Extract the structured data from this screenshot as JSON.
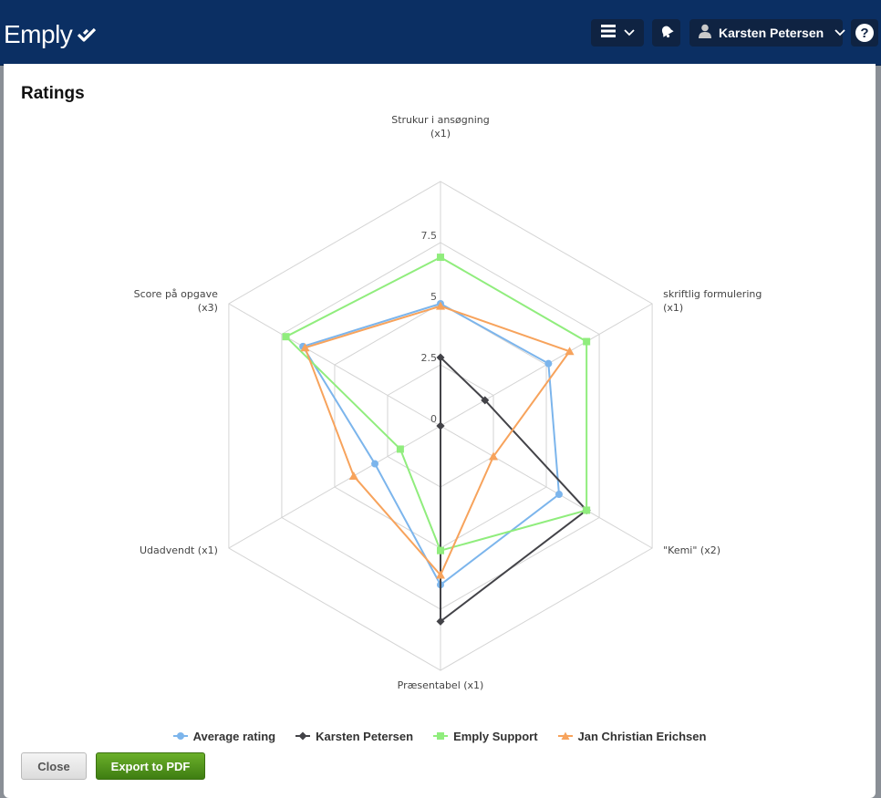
{
  "header": {
    "logo_text": "Emply",
    "user_name": "Karsten Petersen",
    "help_label": "?",
    "bg_color": "#0b2f63"
  },
  "dialog": {
    "title": "Ratings",
    "close_label": "Close",
    "export_label": "Export to PDF"
  },
  "chart_data": {
    "type": "radar",
    "axes": [
      [
        "Strukur i ansøgning",
        "(x1)"
      ],
      [
        "skriftlig formulering",
        "(x1)"
      ],
      [
        "\"Kemi\" (x2)"
      ],
      [
        "Præsentabel (x1)"
      ],
      [
        "Udadvendt (x1)"
      ],
      [
        "Score på opgave",
        "(x3)"
      ]
    ],
    "ticks": [
      "0",
      "2.5",
      "5",
      "7.5"
    ],
    "range": [
      0,
      10
    ],
    "grid": true,
    "legend_position": "bottom",
    "series": [
      {
        "name": "Average rating",
        "color": "#7cb5ec",
        "marker": "circle",
        "values": [
          5,
          5.1,
          5.6,
          6.5,
          3.1,
          6.5
        ]
      },
      {
        "name": "Karsten Petersen",
        "color": "#434348",
        "marker": "diamond",
        "values": [
          2.8,
          2.1,
          6.9,
          8,
          0,
          0
        ]
      },
      {
        "name": "Emply Support",
        "color": "#90ed7d",
        "marker": "square",
        "values": [
          6.9,
          6.9,
          6.9,
          5.1,
          1.9,
          7.3
        ]
      },
      {
        "name": "Jan Christian Erichsen",
        "color": "#f7a35c",
        "marker": "triangle",
        "values": [
          4.9,
          6.1,
          2.5,
          6.1,
          4.1,
          6.4
        ]
      }
    ]
  }
}
